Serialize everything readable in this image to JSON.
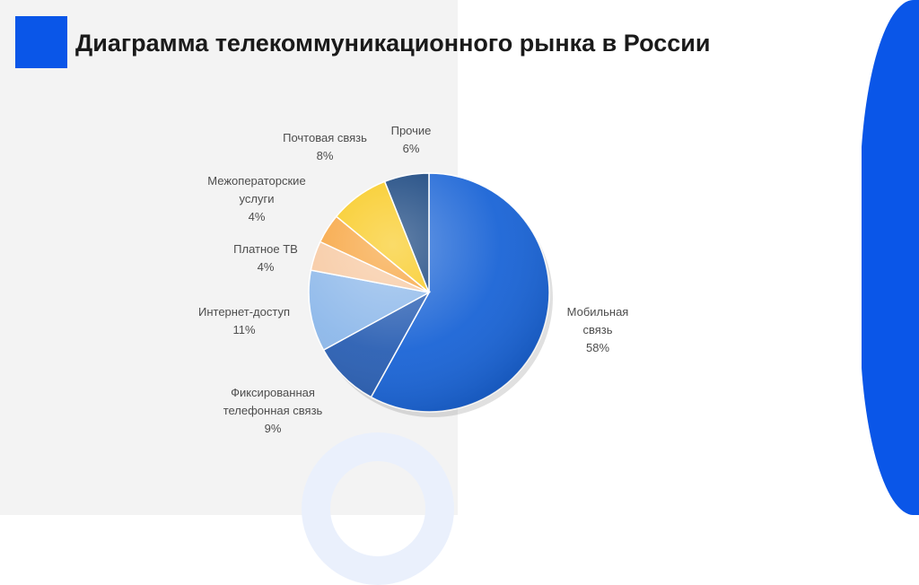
{
  "header": {
    "title": "Диаграмма телекоммуникационного рынка в России",
    "accent_color": "#0a56e8"
  },
  "chart_data": {
    "type": "pie",
    "title": "",
    "slices": [
      {
        "label_lines": [
          "Мобильная",
          "связь"
        ],
        "value": 58,
        "value_text": "58%",
        "color": "#1a64d6"
      },
      {
        "label_lines": [
          "Фиксированная",
          "телефонная связь"
        ],
        "value": 9,
        "value_text": "9%",
        "color": "#2a5fb3"
      },
      {
        "label_lines": [
          "Интернет-доступ"
        ],
        "value": 11,
        "value_text": "11%",
        "color": "#8db8ea"
      },
      {
        "label_lines": [
          "Платное ТВ"
        ],
        "value": 4,
        "value_text": "4%",
        "color": "#f7c8a0"
      },
      {
        "label_lines": [
          "Межоператорские",
          "услуги"
        ],
        "value": 4,
        "value_text": "4%",
        "color": "#f7a23a"
      },
      {
        "label_lines": [
          "Почтовая связь"
        ],
        "value": 8,
        "value_text": "8%",
        "color": "#f8c818"
      },
      {
        "label_lines": [
          "Прочие"
        ],
        "value": 6,
        "value_text": "6%",
        "color": "#0f3e7a"
      }
    ]
  }
}
